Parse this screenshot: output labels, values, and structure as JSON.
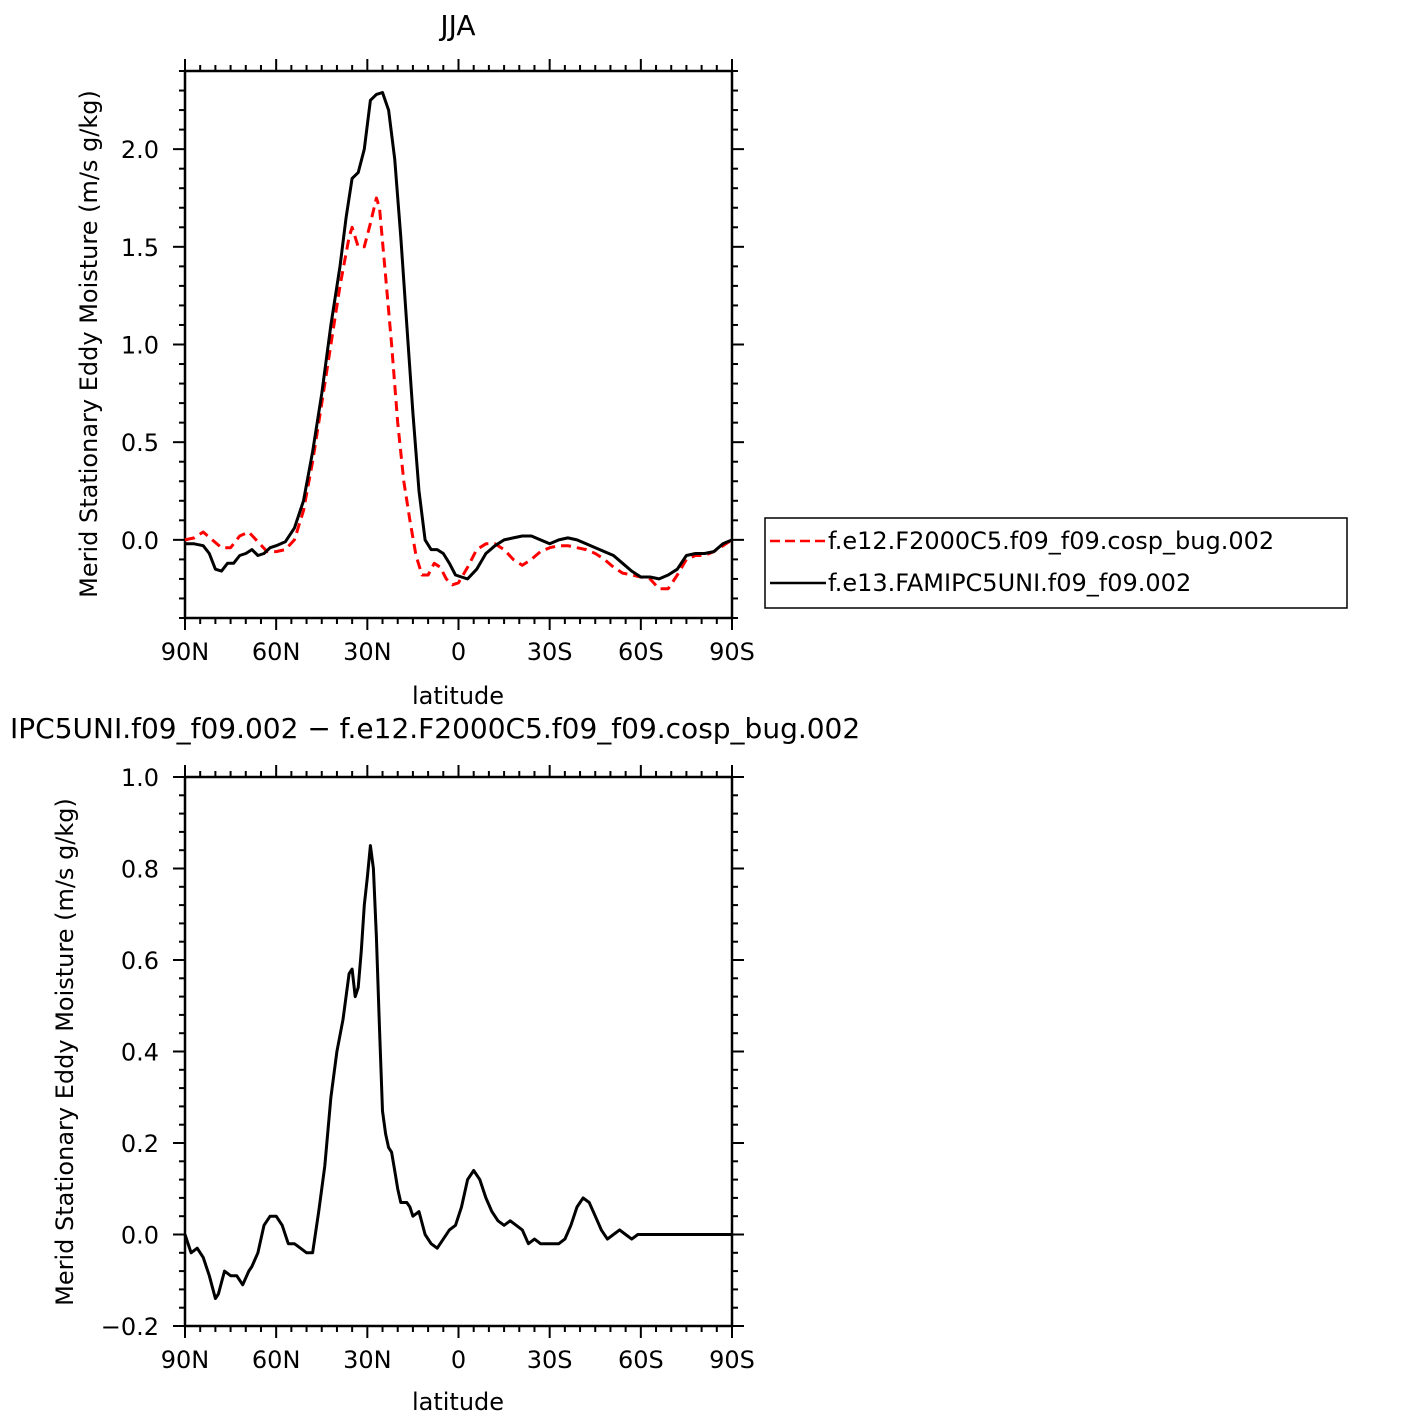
{
  "chart_data": [
    {
      "type": "line",
      "title": "JJA",
      "xlabel": "latitude",
      "ylabel": "Merid Stationary Eddy Moisture (m/s g/kg)",
      "xlim": [
        90,
        -90
      ],
      "ylim": [
        -0.4,
        2.4
      ],
      "x_ticks": [
        90,
        60,
        30,
        0,
        -30,
        -60,
        -90
      ],
      "x_tick_labels": [
        "90N",
        "60N",
        "30N",
        "0",
        "30S",
        "60S",
        "90S"
      ],
      "y_ticks": [
        0.0,
        0.5,
        1.0,
        1.5,
        2.0
      ],
      "y_tick_labels": [
        "0.0",
        "0.5",
        "1.0",
        "1.5",
        "2.0"
      ],
      "legend_placement": "right",
      "series": [
        {
          "name": "f.e12.F2000C5.f09_f09.cosp_bug.002",
          "color": "#ff0000",
          "style": "dashed",
          "x": [
            90,
            87,
            84,
            81,
            78,
            75,
            72,
            69,
            66,
            63,
            60,
            57,
            54,
            51,
            48,
            45,
            42,
            39,
            36,
            35,
            33,
            31,
            29,
            27,
            26,
            24,
            22,
            20,
            18,
            16,
            14,
            12,
            10,
            8,
            6,
            4,
            2,
            0,
            -3,
            -6,
            -9,
            -12,
            -15,
            -18,
            -21,
            -24,
            -27,
            -30,
            -33,
            -36,
            -39,
            -42,
            -45,
            -48,
            -51,
            -54,
            -57,
            -60,
            -63,
            -66,
            -69,
            -72,
            -75,
            -78,
            -81,
            -84,
            -87,
            -90
          ],
          "y": [
            0.0,
            0.01,
            0.04,
            0.0,
            -0.04,
            -0.04,
            0.02,
            0.04,
            -0.01,
            -0.06,
            -0.06,
            -0.05,
            0.0,
            0.15,
            0.4,
            0.7,
            1.0,
            1.3,
            1.55,
            1.6,
            1.5,
            1.5,
            1.62,
            1.75,
            1.7,
            1.35,
            1.0,
            0.6,
            0.3,
            0.1,
            -0.08,
            -0.18,
            -0.18,
            -0.12,
            -0.14,
            -0.2,
            -0.23,
            -0.22,
            -0.14,
            -0.05,
            -0.02,
            -0.02,
            -0.05,
            -0.1,
            -0.13,
            -0.1,
            -0.06,
            -0.04,
            -0.03,
            -0.03,
            -0.04,
            -0.05,
            -0.07,
            -0.1,
            -0.14,
            -0.17,
            -0.18,
            -0.19,
            -0.2,
            -0.25,
            -0.25,
            -0.18,
            -0.1,
            -0.08,
            -0.08,
            -0.06,
            -0.03,
            0.0
          ]
        },
        {
          "name": "f.e13.FAMIPC5UNI.f09_f09.002",
          "color": "#000000",
          "style": "solid",
          "x": [
            90,
            87,
            84,
            82,
            80,
            78,
            76,
            74,
            72,
            70,
            68,
            66,
            64,
            62,
            60,
            57,
            54,
            51,
            48,
            45,
            42,
            39,
            37,
            35,
            33,
            31,
            29,
            27,
            25,
            23,
            21,
            19,
            17,
            15,
            13,
            11,
            9,
            7,
            5,
            3,
            1,
            -1,
            -3,
            -6,
            -9,
            -12,
            -15,
            -18,
            -21,
            -24,
            -27,
            -30,
            -33,
            -36,
            -39,
            -42,
            -45,
            -48,
            -51,
            -54,
            -57,
            -60,
            -63,
            -66,
            -69,
            -72,
            -75,
            -78,
            -81,
            -84,
            -87,
            -90
          ],
          "y": [
            -0.02,
            -0.02,
            -0.03,
            -0.07,
            -0.15,
            -0.16,
            -0.12,
            -0.12,
            -0.08,
            -0.07,
            -0.05,
            -0.08,
            -0.07,
            -0.04,
            -0.03,
            -0.01,
            0.06,
            0.2,
            0.45,
            0.75,
            1.1,
            1.4,
            1.65,
            1.85,
            1.88,
            2.0,
            2.25,
            2.28,
            2.29,
            2.2,
            1.95,
            1.55,
            1.1,
            0.65,
            0.25,
            0.0,
            -0.05,
            -0.05,
            -0.07,
            -0.12,
            -0.18,
            -0.19,
            -0.2,
            -0.15,
            -0.07,
            -0.03,
            0.0,
            0.01,
            0.02,
            0.02,
            0.0,
            -0.02,
            0.0,
            0.01,
            0.0,
            -0.02,
            -0.04,
            -0.06,
            -0.08,
            -0.12,
            -0.16,
            -0.19,
            -0.19,
            -0.2,
            -0.18,
            -0.15,
            -0.08,
            -0.07,
            -0.07,
            -0.06,
            -0.02,
            0.0
          ]
        }
      ]
    },
    {
      "type": "line",
      "title": "IPC5UNI.f09_f09.002 − f.e12.F2000C5.f09_f09.cosp_bug.002",
      "xlabel": "latitude",
      "ylabel": "Merid Stationary Eddy Moisture (m/s g/kg)",
      "xlim": [
        90,
        -90
      ],
      "ylim": [
        -0.2,
        1.0
      ],
      "x_ticks": [
        90,
        60,
        30,
        0,
        -30,
        -60,
        -90
      ],
      "x_tick_labels": [
        "90N",
        "60N",
        "30N",
        "0",
        "30S",
        "60S",
        "90S"
      ],
      "y_ticks": [
        -0.2,
        0.0,
        0.2,
        0.4,
        0.6,
        0.8,
        1.0
      ],
      "y_tick_labels": [
        "−0.2",
        "0.0",
        "0.2",
        "0.4",
        "0.6",
        "0.8",
        "1.0"
      ],
      "series": [
        {
          "color": "#000000",
          "style": "solid",
          "x": [
            90,
            88,
            86,
            84,
            82,
            80,
            79,
            77,
            75,
            73,
            71,
            69,
            68,
            66,
            64,
            62,
            60,
            58,
            56,
            54,
            52,
            50,
            48,
            46,
            44,
            42,
            40,
            38,
            36,
            35,
            34,
            33,
            32,
            31,
            30,
            29,
            28,
            27,
            26,
            25,
            24,
            23,
            22,
            21,
            20,
            19,
            18,
            17,
            16,
            15,
            13,
            11,
            9,
            7,
            5,
            3,
            1,
            -1,
            -3,
            -5,
            -7,
            -9,
            -11,
            -13,
            -15,
            -17,
            -19,
            -21,
            -23,
            -25,
            -27,
            -29,
            -31,
            -33,
            -35,
            -37,
            -39,
            -41,
            -43,
            -45,
            -47,
            -49,
            -51,
            -53,
            -55,
            -57,
            -59,
            -61,
            -63,
            -65,
            -67,
            -69,
            -71,
            -73,
            -75,
            -77,
            -79,
            -81,
            -83,
            -85,
            -87,
            -90
          ],
          "y": [
            0.0,
            -0.04,
            -0.03,
            -0.05,
            -0.09,
            -0.14,
            -0.13,
            -0.08,
            -0.09,
            -0.09,
            -0.11,
            -0.08,
            -0.07,
            -0.04,
            0.02,
            0.04,
            0.04,
            0.02,
            -0.02,
            -0.02,
            -0.03,
            -0.04,
            -0.04,
            0.05,
            0.15,
            0.3,
            0.4,
            0.47,
            0.57,
            0.58,
            0.52,
            0.54,
            0.62,
            0.72,
            0.78,
            0.85,
            0.8,
            0.65,
            0.45,
            0.27,
            0.22,
            0.19,
            0.18,
            0.14,
            0.1,
            0.07,
            0.07,
            0.07,
            0.06,
            0.04,
            0.05,
            0.0,
            -0.02,
            -0.03,
            -0.01,
            0.01,
            0.02,
            0.06,
            0.12,
            0.14,
            0.12,
            0.08,
            0.05,
            0.03,
            0.02,
            0.03,
            0.02,
            0.01,
            -0.02,
            -0.01,
            -0.02,
            -0.02,
            -0.02,
            -0.02,
            -0.01,
            0.02,
            0.06,
            0.08,
            0.07,
            0.04,
            0.01,
            -0.01,
            0.0,
            0.01,
            0.0,
            -0.01,
            0.0,
            0.0,
            0.0,
            0.0,
            0.0,
            0.0,
            0.0,
            0.0,
            0.0,
            0.0,
            0.0,
            0.0,
            0.0,
            0.0,
            0.0,
            0.0
          ]
        }
      ]
    }
  ]
}
